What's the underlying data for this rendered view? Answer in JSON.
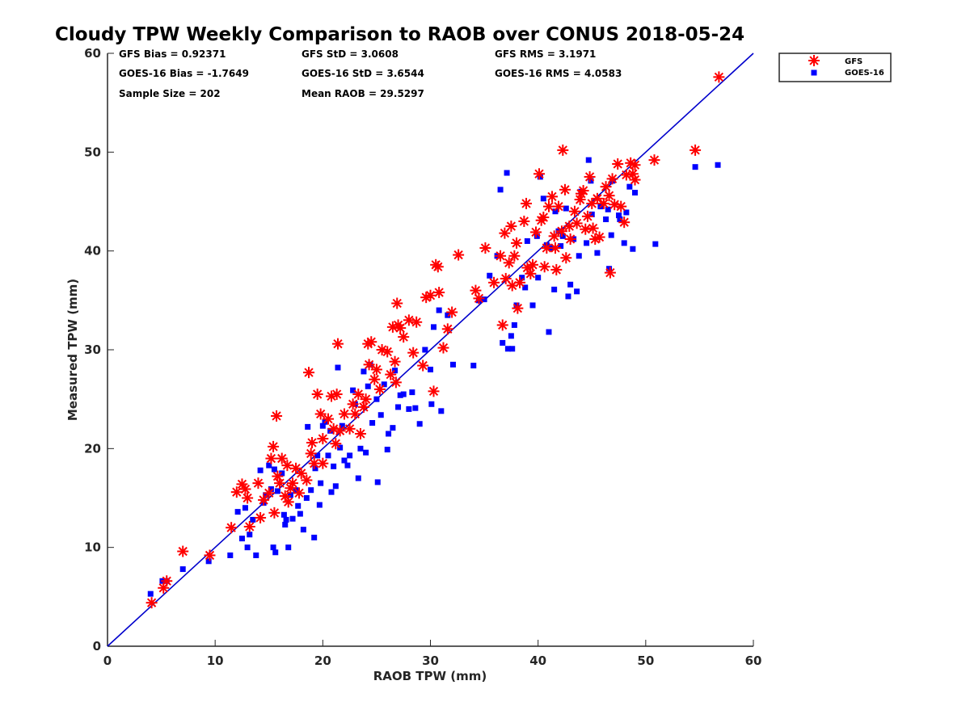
{
  "chart_data": {
    "type": "scatter",
    "title": "Cloudy TPW Weekly Comparison to RAOB over CONUS 2018-05-24",
    "xlabel": "RAOB TPW (mm)",
    "ylabel": "Measured TPW (mm)",
    "xlim": [
      0,
      60
    ],
    "ylim": [
      0,
      60
    ],
    "xticks": [
      0,
      10,
      20,
      30,
      40,
      50,
      60
    ],
    "yticks": [
      0,
      10,
      20,
      30,
      40,
      50,
      60
    ],
    "legend_position": "top-right outside",
    "grid": false,
    "stats": {
      "gfs_bias": "GFS Bias = 0.92371",
      "gfs_std": "GFS StD = 3.0608",
      "gfs_rms": "GFS RMS = 3.1971",
      "goes_bias": "GOES-16 Bias = -1.7649",
      "goes_std": "GOES-16 StD = 3.6544",
      "goes_rms": "GOES-16 RMS = 4.0583",
      "sample_size": "Sample Size = 202",
      "mean_raob": "Mean RAOB = 29.5297"
    },
    "reference_line": {
      "from": [
        0,
        0
      ],
      "to": [
        60,
        60
      ],
      "color": "#0000cc"
    },
    "series": [
      {
        "name": "GFS",
        "marker": "asterisk",
        "color": "#ff0000",
        "points": [
          [
            4.1,
            4.4
          ],
          [
            5.2,
            5.9
          ],
          [
            5.5,
            6.6
          ],
          [
            7,
            9.6
          ],
          [
            9.5,
            9.2
          ],
          [
            11.5,
            12
          ],
          [
            12,
            15.6
          ],
          [
            12.5,
            16.4
          ],
          [
            12.8,
            15.9
          ],
          [
            13,
            15
          ],
          [
            13.2,
            12.1
          ],
          [
            14,
            16.5
          ],
          [
            14.2,
            13
          ],
          [
            14.5,
            14.8
          ],
          [
            15,
            15.5
          ],
          [
            15.2,
            19
          ],
          [
            15.4,
            20.2
          ],
          [
            15.5,
            13.5
          ],
          [
            15.7,
            23.3
          ],
          [
            15.8,
            17.2
          ],
          [
            16,
            16.5
          ],
          [
            16.2,
            19
          ],
          [
            16.5,
            15.2
          ],
          [
            16.7,
            18.3
          ],
          [
            16.8,
            14.6
          ],
          [
            17,
            16
          ],
          [
            17.2,
            16.5
          ],
          [
            17.5,
            18
          ],
          [
            17.8,
            15.5
          ],
          [
            18,
            17.5
          ],
          [
            18.5,
            16.8
          ],
          [
            18.7,
            27.7
          ],
          [
            18.9,
            19.5
          ],
          [
            19,
            20.6
          ],
          [
            19.2,
            18.5
          ],
          [
            19.5,
            25.5
          ],
          [
            19.8,
            23.5
          ],
          [
            20,
            21
          ],
          [
            20,
            18.5
          ],
          [
            20.5,
            23
          ],
          [
            20.8,
            25.3
          ],
          [
            21,
            22
          ],
          [
            21.2,
            20.5
          ],
          [
            21.3,
            25.5
          ],
          [
            21.4,
            30.6
          ],
          [
            21.6,
            21.8
          ],
          [
            22,
            23.5
          ],
          [
            22.5,
            22
          ],
          [
            22.8,
            24.5
          ],
          [
            23,
            23.5
          ],
          [
            23.3,
            25.5
          ],
          [
            23.5,
            21.5
          ],
          [
            23.8,
            24.2
          ],
          [
            24,
            25
          ],
          [
            24.2,
            30.6
          ],
          [
            24.3,
            28.5
          ],
          [
            24.5,
            30.8
          ],
          [
            24.8,
            27
          ],
          [
            25,
            28
          ],
          [
            25.3,
            26
          ],
          [
            25.5,
            30
          ],
          [
            26,
            29.8
          ],
          [
            26.3,
            27.5
          ],
          [
            26.5,
            32.3
          ],
          [
            26.7,
            28.8
          ],
          [
            26.8,
            26.7
          ],
          [
            26.9,
            34.7
          ],
          [
            27,
            32.5
          ],
          [
            27.2,
            32.2
          ],
          [
            27.5,
            31.3
          ],
          [
            28,
            33
          ],
          [
            28.4,
            29.7
          ],
          [
            28.7,
            32.8
          ],
          [
            29.3,
            28.4
          ],
          [
            29.6,
            35.3
          ],
          [
            30,
            35.5
          ],
          [
            30.3,
            25.8
          ],
          [
            30.5,
            38.6
          ],
          [
            30.7,
            38.4
          ],
          [
            30.8,
            35.8
          ],
          [
            31.2,
            30.2
          ],
          [
            31.6,
            32.1
          ],
          [
            32,
            33.8
          ],
          [
            32.6,
            39.6
          ],
          [
            34.2,
            36
          ],
          [
            34.5,
            35.2
          ],
          [
            35.1,
            40.3
          ],
          [
            35.9,
            36.8
          ],
          [
            36.5,
            39.5
          ],
          [
            36.7,
            32.5
          ],
          [
            36.9,
            41.8
          ],
          [
            37,
            37.2
          ],
          [
            37.3,
            38.8
          ],
          [
            37.5,
            42.5
          ],
          [
            37.6,
            36.5
          ],
          [
            37.8,
            39.5
          ],
          [
            38,
            40.8
          ],
          [
            38.1,
            34.2
          ],
          [
            38.3,
            36.8
          ],
          [
            38.7,
            43
          ],
          [
            38.9,
            44.8
          ],
          [
            39,
            38.3
          ],
          [
            39.3,
            37.7
          ],
          [
            39.5,
            38.6
          ],
          [
            39.8,
            41.9
          ],
          [
            40.1,
            47.8
          ],
          [
            40.3,
            43.1
          ],
          [
            40.5,
            43.4
          ],
          [
            40.6,
            38.4
          ],
          [
            40.8,
            40.3
          ],
          [
            41,
            44.5
          ],
          [
            41.3,
            45.5
          ],
          [
            41.5,
            41.5
          ],
          [
            41.6,
            40.3
          ],
          [
            41.7,
            38.1
          ],
          [
            41.9,
            44.5
          ],
          [
            42.2,
            42
          ],
          [
            42.3,
            50.2
          ],
          [
            42.5,
            46.2
          ],
          [
            42.6,
            39.3
          ],
          [
            42.9,
            42.5
          ],
          [
            43,
            41.2
          ],
          [
            43.4,
            44
          ],
          [
            43.6,
            42.8
          ],
          [
            43.9,
            45.2
          ],
          [
            44,
            45.8
          ],
          [
            44.2,
            46.1
          ],
          [
            44.4,
            42.2
          ],
          [
            44.6,
            43.5
          ],
          [
            44.8,
            47.5
          ],
          [
            45,
            44.8
          ],
          [
            45.1,
            42.3
          ],
          [
            45.3,
            41.2
          ],
          [
            45.5,
            45.3
          ],
          [
            45.7,
            41.4
          ],
          [
            46.1,
            44.8
          ],
          [
            46.3,
            46.5
          ],
          [
            46.6,
            45.6
          ],
          [
            46.7,
            37.8
          ],
          [
            46.9,
            47.3
          ],
          [
            47.1,
            44.7
          ],
          [
            47.4,
            48.8
          ],
          [
            47.7,
            44.5
          ],
          [
            48,
            42.9
          ],
          [
            48.2,
            47.7
          ],
          [
            48.6,
            48.9
          ],
          [
            48.8,
            47.8
          ],
          [
            49,
            47.2
          ],
          [
            49,
            48.7
          ],
          [
            50.8,
            49.2
          ],
          [
            54.6,
            50.2
          ],
          [
            56.8,
            57.6
          ]
        ]
      },
      {
        "name": "GOES-16",
        "marker": "square",
        "color": "#0000ff",
        "points": [
          [
            4,
            5.3
          ],
          [
            5.1,
            6.6
          ],
          [
            5.5,
            6.6
          ],
          [
            7,
            7.8
          ],
          [
            9.4,
            8.6
          ],
          [
            11.4,
            9.2
          ],
          [
            12.1,
            13.6
          ],
          [
            12.5,
            10.9
          ],
          [
            12.8,
            14
          ],
          [
            13,
            10
          ],
          [
            13.2,
            11.3
          ],
          [
            13.5,
            12.8
          ],
          [
            13.8,
            9.2
          ],
          [
            14.2,
            17.8
          ],
          [
            14.5,
            14.5
          ],
          [
            14.7,
            15.3
          ],
          [
            15,
            18.3
          ],
          [
            15.2,
            15.9
          ],
          [
            15.4,
            10
          ],
          [
            15.5,
            17.9
          ],
          [
            15.6,
            9.5
          ],
          [
            15.8,
            15.7
          ],
          [
            16.2,
            17.5
          ],
          [
            16.4,
            13.3
          ],
          [
            16.5,
            12.3
          ],
          [
            16.6,
            12.8
          ],
          [
            16.8,
            10
          ],
          [
            17,
            15.3
          ],
          [
            17.2,
            12.9
          ],
          [
            17.5,
            15.8
          ],
          [
            17.7,
            14.2
          ],
          [
            17.9,
            13.4
          ],
          [
            18.2,
            11.8
          ],
          [
            18.5,
            15
          ],
          [
            18.6,
            22.2
          ],
          [
            18.9,
            15.8
          ],
          [
            19.2,
            11
          ],
          [
            19.3,
            18
          ],
          [
            19.5,
            19.3
          ],
          [
            19.7,
            14.3
          ],
          [
            19.8,
            16.5
          ],
          [
            20,
            22.3
          ],
          [
            20.2,
            22.7
          ],
          [
            20.5,
            19.3
          ],
          [
            20.7,
            21.8
          ],
          [
            20.8,
            15.6
          ],
          [
            21,
            18.2
          ],
          [
            21.2,
            16.2
          ],
          [
            21.4,
            28.2
          ],
          [
            21.6,
            20.1
          ],
          [
            21.8,
            22.3
          ],
          [
            22,
            18.8
          ],
          [
            22.3,
            18.3
          ],
          [
            22.5,
            19.3
          ],
          [
            22.8,
            25.9
          ],
          [
            23,
            24.5
          ],
          [
            23.3,
            17
          ],
          [
            23.5,
            20
          ],
          [
            23.8,
            27.8
          ],
          [
            24,
            19.6
          ],
          [
            24.2,
            26.3
          ],
          [
            24.4,
            28.5
          ],
          [
            24.6,
            22.6
          ],
          [
            25,
            25
          ],
          [
            25.1,
            16.6
          ],
          [
            25.4,
            23.4
          ],
          [
            25.7,
            26.5
          ],
          [
            26,
            19.9
          ],
          [
            26.1,
            21.5
          ],
          [
            26.5,
            22.1
          ],
          [
            26.7,
            27.9
          ],
          [
            27,
            24.2
          ],
          [
            27.2,
            25.4
          ],
          [
            27.5,
            25.5
          ],
          [
            28,
            24
          ],
          [
            28.3,
            25.7
          ],
          [
            28.6,
            24.1
          ],
          [
            29,
            22.5
          ],
          [
            29.5,
            30
          ],
          [
            30,
            28
          ],
          [
            30.1,
            24.5
          ],
          [
            30.3,
            32.3
          ],
          [
            30.8,
            34
          ],
          [
            31,
            23.8
          ],
          [
            31.6,
            33.5
          ],
          [
            32.1,
            28.5
          ],
          [
            34,
            28.4
          ],
          [
            34.5,
            35
          ],
          [
            35,
            35.1
          ],
          [
            35.5,
            37.5
          ],
          [
            36.2,
            39.5
          ],
          [
            36.5,
            46.2
          ],
          [
            36.7,
            30.7
          ],
          [
            37.1,
            47.9
          ],
          [
            37.2,
            30.1
          ],
          [
            37.5,
            31.4
          ],
          [
            37.6,
            30.1
          ],
          [
            37.8,
            32.5
          ],
          [
            38,
            34.5
          ],
          [
            38.5,
            37.3
          ],
          [
            38.8,
            36.3
          ],
          [
            39,
            41
          ],
          [
            39.5,
            34.5
          ],
          [
            39.9,
            41.5
          ],
          [
            40,
            37.3
          ],
          [
            40.2,
            47.5
          ],
          [
            40.5,
            45.3
          ],
          [
            40.8,
            40.6
          ],
          [
            41,
            31.8
          ],
          [
            41.2,
            40.3
          ],
          [
            41.5,
            36.1
          ],
          [
            41.6,
            44
          ],
          [
            41.9,
            42
          ],
          [
            42.1,
            40.5
          ],
          [
            42.3,
            41.5
          ],
          [
            42.6,
            44.3
          ],
          [
            42.8,
            35.4
          ],
          [
            43,
            36.6
          ],
          [
            43.3,
            41.2
          ],
          [
            43.6,
            35.9
          ],
          [
            43.8,
            39.5
          ],
          [
            44,
            46
          ],
          [
            44.5,
            40.8
          ],
          [
            44.7,
            49.2
          ],
          [
            44.9,
            47.1
          ],
          [
            45,
            43.7
          ],
          [
            45.5,
            39.8
          ],
          [
            45.8,
            44.5
          ],
          [
            46.3,
            43.2
          ],
          [
            46.5,
            44.2
          ],
          [
            46.6,
            38.2
          ],
          [
            46.8,
            41.6
          ],
          [
            46.9,
            47.1
          ],
          [
            47.5,
            43.6
          ],
          [
            47.6,
            43.2
          ],
          [
            48,
            40.8
          ],
          [
            48.2,
            43.9
          ],
          [
            48.5,
            46.5
          ],
          [
            48.8,
            40.2
          ],
          [
            49,
            45.9
          ],
          [
            50.9,
            40.7
          ],
          [
            54.6,
            48.5
          ],
          [
            56.7,
            48.7
          ]
        ]
      }
    ]
  }
}
